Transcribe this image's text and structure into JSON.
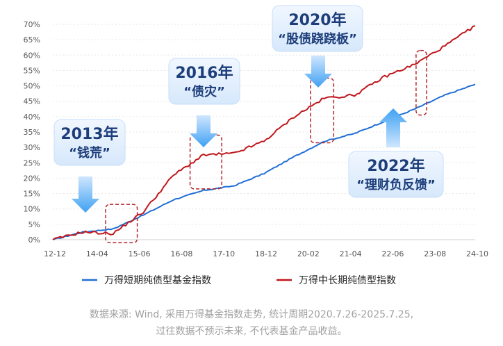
{
  "chart_data": {
    "type": "line",
    "ylim": [
      0,
      70
    ],
    "y_ticks": [
      "0%",
      "5%",
      "10%",
      "15%",
      "20%",
      "25%",
      "30%",
      "35%",
      "40%",
      "45%",
      "50%",
      "55%",
      "60%",
      "65%",
      "70%"
    ],
    "x_ticks": [
      "12-12",
      "14-04",
      "15-06",
      "16-08",
      "17-10",
      "18-12",
      "20-02",
      "21-04",
      "22-06",
      "23-08",
      "24-10"
    ],
    "grid": true,
    "legend_position": "bottom",
    "series": [
      {
        "name": "万得短期纯债型基金指数",
        "color": "#1f6fd6",
        "values": [
          0.0,
          2.5,
          3.5,
          8.0,
          13.0,
          16.0,
          17.5,
          21.5,
          27.0,
          32.0,
          34.5,
          38.5,
          42.5,
          47.0,
          50.5
        ]
      },
      {
        "name": "万得中长期纯债型指数",
        "color": "#c0161d",
        "values": [
          0.0,
          2.5,
          2.0,
          9.0,
          21.0,
          27.5,
          28.0,
          32.0,
          40.0,
          46.0,
          47.0,
          53.0,
          57.0,
          63.0,
          69.5
        ]
      }
    ],
    "annotations": [
      {
        "year": "2013年",
        "label": "“钱荒”"
      },
      {
        "year": "2016年",
        "label": "“债灾”"
      },
      {
        "year": "2020年",
        "label": "“股债跷跷板”"
      },
      {
        "year": "2022年",
        "label": "“理财负反馈”"
      }
    ]
  },
  "source_line1": "数据来源: Wind, 采用万得基金指数走势, 统计周期2020.7.26-2025.7.25,",
  "source_line2": "过往数据不预示未来, 不代表基金产品收益。"
}
